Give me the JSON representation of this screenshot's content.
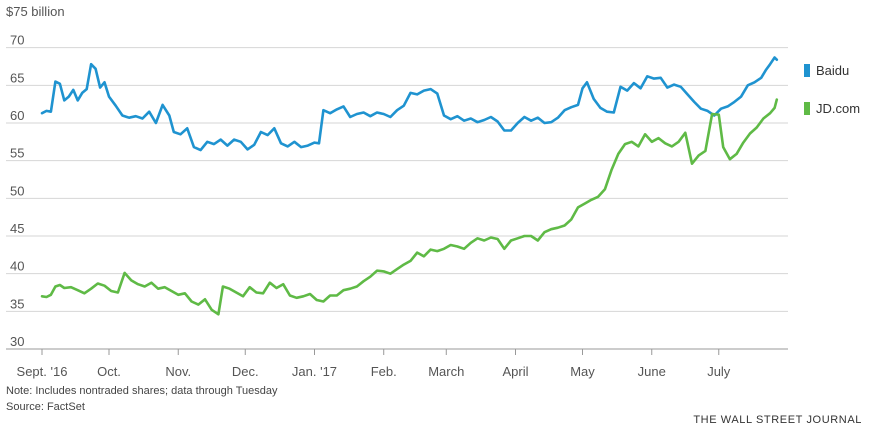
{
  "chart_data": {
    "type": "line",
    "title": "",
    "ylabel": "$75 billion",
    "xlabel": "",
    "ylim": [
      30,
      75
    ],
    "yticks": [
      30,
      35,
      40,
      45,
      50,
      55,
      60,
      65,
      70
    ],
    "grid": true,
    "legend_position": "right",
    "x_labels": [
      {
        "label": "Sept. '16",
        "date": "2016-09-01"
      },
      {
        "label": "Oct.",
        "date": "2016-10-01"
      },
      {
        "label": "Nov.",
        "date": "2016-11-01"
      },
      {
        "label": "Dec.",
        "date": "2016-12-01"
      },
      {
        "label": "Jan. '17",
        "date": "2017-01-01"
      },
      {
        "label": "Feb.",
        "date": "2017-02-01"
      },
      {
        "label": "March",
        "date": "2017-03-01"
      },
      {
        "label": "April",
        "date": "2017-04-01"
      },
      {
        "label": "May",
        "date": "2017-05-01"
      },
      {
        "label": "June",
        "date": "2017-06-01"
      },
      {
        "label": "July",
        "date": "2017-07-01"
      }
    ],
    "series": [
      {
        "name": "Baidu",
        "color": "#1f93d0",
        "points": [
          [
            "2016-09-01",
            61.3
          ],
          [
            "2016-09-03",
            61.6
          ],
          [
            "2016-09-05",
            61.5
          ],
          [
            "2016-09-07",
            65.5
          ],
          [
            "2016-09-09",
            65.2
          ],
          [
            "2016-09-11",
            63.0
          ],
          [
            "2016-09-13",
            63.5
          ],
          [
            "2016-09-15",
            64.4
          ],
          [
            "2016-09-17",
            63.0
          ],
          [
            "2016-09-19",
            64.0
          ],
          [
            "2016-09-21",
            64.5
          ],
          [
            "2016-09-23",
            67.8
          ],
          [
            "2016-09-25",
            67.2
          ],
          [
            "2016-09-27",
            64.7
          ],
          [
            "2016-09-29",
            65.4
          ],
          [
            "2016-10-01",
            63.5
          ],
          [
            "2016-10-04",
            62.3
          ],
          [
            "2016-10-07",
            61.0
          ],
          [
            "2016-10-10",
            60.7
          ],
          [
            "2016-10-13",
            60.9
          ],
          [
            "2016-10-16",
            60.6
          ],
          [
            "2016-10-19",
            61.5
          ],
          [
            "2016-10-22",
            60.0
          ],
          [
            "2016-10-25",
            62.4
          ],
          [
            "2016-10-28",
            61.0
          ],
          [
            "2016-10-30",
            58.8
          ],
          [
            "2016-11-02",
            58.5
          ],
          [
            "2016-11-05",
            59.3
          ],
          [
            "2016-11-08",
            56.8
          ],
          [
            "2016-11-11",
            56.4
          ],
          [
            "2016-11-14",
            57.5
          ],
          [
            "2016-11-17",
            57.2
          ],
          [
            "2016-11-20",
            57.8
          ],
          [
            "2016-11-23",
            57.0
          ],
          [
            "2016-11-26",
            57.8
          ],
          [
            "2016-11-29",
            57.5
          ],
          [
            "2016-12-02",
            56.5
          ],
          [
            "2016-12-05",
            57.1
          ],
          [
            "2016-12-08",
            58.8
          ],
          [
            "2016-12-11",
            58.4
          ],
          [
            "2016-12-14",
            59.3
          ],
          [
            "2016-12-17",
            57.3
          ],
          [
            "2016-12-20",
            56.9
          ],
          [
            "2016-12-23",
            57.5
          ],
          [
            "2016-12-26",
            56.8
          ],
          [
            "2016-12-29",
            57.0
          ],
          [
            "2017-01-01",
            57.4
          ],
          [
            "2017-01-03",
            57.3
          ],
          [
            "2017-01-05",
            61.7
          ],
          [
            "2017-01-08",
            61.3
          ],
          [
            "2017-01-11",
            61.8
          ],
          [
            "2017-01-14",
            62.2
          ],
          [
            "2017-01-17",
            60.8
          ],
          [
            "2017-01-20",
            61.2
          ],
          [
            "2017-01-23",
            61.4
          ],
          [
            "2017-01-26",
            60.9
          ],
          [
            "2017-01-29",
            61.4
          ],
          [
            "2017-02-01",
            61.2
          ],
          [
            "2017-02-04",
            60.8
          ],
          [
            "2017-02-07",
            61.7
          ],
          [
            "2017-02-10",
            62.3
          ],
          [
            "2017-02-13",
            64.0
          ],
          [
            "2017-02-16",
            63.8
          ],
          [
            "2017-02-19",
            64.3
          ],
          [
            "2017-02-22",
            64.5
          ],
          [
            "2017-02-25",
            63.9
          ],
          [
            "2017-02-28",
            61.0
          ],
          [
            "2017-03-03",
            60.5
          ],
          [
            "2017-03-06",
            60.9
          ],
          [
            "2017-03-09",
            60.3
          ],
          [
            "2017-03-12",
            60.6
          ],
          [
            "2017-03-15",
            60.1
          ],
          [
            "2017-03-18",
            60.4
          ],
          [
            "2017-03-21",
            60.8
          ],
          [
            "2017-03-24",
            60.2
          ],
          [
            "2017-03-27",
            59.0
          ],
          [
            "2017-03-30",
            59.0
          ],
          [
            "2017-04-02",
            60.0
          ],
          [
            "2017-04-05",
            60.8
          ],
          [
            "2017-04-08",
            60.3
          ],
          [
            "2017-04-11",
            60.7
          ],
          [
            "2017-04-14",
            60.0
          ],
          [
            "2017-04-17",
            60.1
          ],
          [
            "2017-04-20",
            60.7
          ],
          [
            "2017-04-23",
            61.7
          ],
          [
            "2017-04-26",
            62.1
          ],
          [
            "2017-04-29",
            62.4
          ],
          [
            "2017-05-01",
            64.6
          ],
          [
            "2017-05-03",
            65.4
          ],
          [
            "2017-05-06",
            63.2
          ],
          [
            "2017-05-09",
            62.0
          ],
          [
            "2017-05-12",
            61.5
          ],
          [
            "2017-05-15",
            61.4
          ],
          [
            "2017-05-18",
            64.8
          ],
          [
            "2017-05-21",
            64.3
          ],
          [
            "2017-05-24",
            65.3
          ],
          [
            "2017-05-27",
            64.6
          ],
          [
            "2017-05-30",
            66.2
          ],
          [
            "2017-06-02",
            65.9
          ],
          [
            "2017-06-05",
            66.0
          ],
          [
            "2017-06-08",
            64.7
          ],
          [
            "2017-06-11",
            65.1
          ],
          [
            "2017-06-14",
            64.8
          ],
          [
            "2017-06-17",
            63.8
          ],
          [
            "2017-06-20",
            62.8
          ],
          [
            "2017-06-23",
            61.9
          ],
          [
            "2017-06-26",
            61.6
          ],
          [
            "2017-06-29",
            61.0
          ],
          [
            "2017-07-02",
            61.9
          ],
          [
            "2017-07-05",
            62.2
          ],
          [
            "2017-07-08",
            62.8
          ],
          [
            "2017-07-11",
            63.5
          ],
          [
            "2017-07-14",
            65.0
          ],
          [
            "2017-07-17",
            65.4
          ],
          [
            "2017-07-20",
            66.0
          ],
          [
            "2017-07-22",
            67.0
          ],
          [
            "2017-07-24",
            67.8
          ],
          [
            "2017-07-26",
            68.7
          ],
          [
            "2017-07-27",
            68.4
          ]
        ]
      },
      {
        "name": "JD.com",
        "color": "#5fba46",
        "points": [
          [
            "2016-09-01",
            37.0
          ],
          [
            "2016-09-03",
            36.9
          ],
          [
            "2016-09-05",
            37.2
          ],
          [
            "2016-09-07",
            38.3
          ],
          [
            "2016-09-09",
            38.5
          ],
          [
            "2016-09-11",
            38.1
          ],
          [
            "2016-09-14",
            38.2
          ],
          [
            "2016-09-17",
            37.8
          ],
          [
            "2016-09-20",
            37.4
          ],
          [
            "2016-09-23",
            38.0
          ],
          [
            "2016-09-26",
            38.7
          ],
          [
            "2016-09-29",
            38.4
          ],
          [
            "2016-10-02",
            37.7
          ],
          [
            "2016-10-05",
            37.5
          ],
          [
            "2016-10-08",
            40.1
          ],
          [
            "2016-10-11",
            39.1
          ],
          [
            "2016-10-14",
            38.6
          ],
          [
            "2016-10-17",
            38.3
          ],
          [
            "2016-10-20",
            38.8
          ],
          [
            "2016-10-23",
            38.0
          ],
          [
            "2016-10-26",
            38.2
          ],
          [
            "2016-10-29",
            37.7
          ],
          [
            "2016-11-01",
            37.2
          ],
          [
            "2016-11-04",
            37.4
          ],
          [
            "2016-11-07",
            36.3
          ],
          [
            "2016-11-10",
            35.9
          ],
          [
            "2016-11-13",
            36.6
          ],
          [
            "2016-11-16",
            35.2
          ],
          [
            "2016-11-19",
            34.6
          ],
          [
            "2016-11-21",
            38.3
          ],
          [
            "2016-11-24",
            38.0
          ],
          [
            "2016-11-27",
            37.5
          ],
          [
            "2016-11-30",
            37.0
          ],
          [
            "2016-12-03",
            38.2
          ],
          [
            "2016-12-06",
            37.5
          ],
          [
            "2016-12-09",
            37.4
          ],
          [
            "2016-12-12",
            38.8
          ],
          [
            "2016-12-15",
            38.1
          ],
          [
            "2016-12-18",
            38.6
          ],
          [
            "2016-12-21",
            37.1
          ],
          [
            "2016-12-24",
            36.8
          ],
          [
            "2016-12-27",
            37.0
          ],
          [
            "2016-12-30",
            37.3
          ],
          [
            "2017-01-02",
            36.5
          ],
          [
            "2017-01-05",
            36.3
          ],
          [
            "2017-01-08",
            37.1
          ],
          [
            "2017-01-11",
            37.1
          ],
          [
            "2017-01-14",
            37.8
          ],
          [
            "2017-01-17",
            38.0
          ],
          [
            "2017-01-20",
            38.3
          ],
          [
            "2017-01-23",
            39.0
          ],
          [
            "2017-01-26",
            39.6
          ],
          [
            "2017-01-29",
            40.4
          ],
          [
            "2017-02-01",
            40.3
          ],
          [
            "2017-02-04",
            40.0
          ],
          [
            "2017-02-07",
            40.6
          ],
          [
            "2017-02-10",
            41.2
          ],
          [
            "2017-02-13",
            41.7
          ],
          [
            "2017-02-16",
            42.8
          ],
          [
            "2017-02-19",
            42.3
          ],
          [
            "2017-02-22",
            43.2
          ],
          [
            "2017-02-25",
            43.0
          ],
          [
            "2017-02-28",
            43.3
          ],
          [
            "2017-03-03",
            43.8
          ],
          [
            "2017-03-06",
            43.6
          ],
          [
            "2017-03-09",
            43.3
          ],
          [
            "2017-03-12",
            44.1
          ],
          [
            "2017-03-15",
            44.7
          ],
          [
            "2017-03-18",
            44.4
          ],
          [
            "2017-03-21",
            44.8
          ],
          [
            "2017-03-24",
            44.6
          ],
          [
            "2017-03-27",
            43.3
          ],
          [
            "2017-03-30",
            44.4
          ],
          [
            "2017-04-02",
            44.7
          ],
          [
            "2017-04-05",
            45.0
          ],
          [
            "2017-04-08",
            45.0
          ],
          [
            "2017-04-11",
            44.4
          ],
          [
            "2017-04-14",
            45.5
          ],
          [
            "2017-04-17",
            45.9
          ],
          [
            "2017-04-20",
            46.1
          ],
          [
            "2017-04-23",
            46.4
          ],
          [
            "2017-04-26",
            47.2
          ],
          [
            "2017-04-29",
            48.8
          ],
          [
            "2017-05-02",
            49.3
          ],
          [
            "2017-05-05",
            49.8
          ],
          [
            "2017-05-08",
            50.2
          ],
          [
            "2017-05-11",
            51.2
          ],
          [
            "2017-05-14",
            53.8
          ],
          [
            "2017-05-17",
            55.9
          ],
          [
            "2017-05-20",
            57.2
          ],
          [
            "2017-05-23",
            57.5
          ],
          [
            "2017-05-26",
            56.9
          ],
          [
            "2017-05-29",
            58.5
          ],
          [
            "2017-06-01",
            57.5
          ],
          [
            "2017-06-04",
            58.0
          ],
          [
            "2017-06-07",
            57.3
          ],
          [
            "2017-06-10",
            56.9
          ],
          [
            "2017-06-13",
            57.5
          ],
          [
            "2017-06-16",
            58.7
          ],
          [
            "2017-06-19",
            54.6
          ],
          [
            "2017-06-22",
            55.7
          ],
          [
            "2017-06-25",
            56.3
          ],
          [
            "2017-06-28",
            61.2
          ],
          [
            "2017-07-01",
            61.1
          ],
          [
            "2017-07-03",
            56.8
          ],
          [
            "2017-07-06",
            55.2
          ],
          [
            "2017-07-09",
            55.9
          ],
          [
            "2017-07-12",
            57.4
          ],
          [
            "2017-07-15",
            58.6
          ],
          [
            "2017-07-18",
            59.4
          ],
          [
            "2017-07-21",
            60.6
          ],
          [
            "2017-07-24",
            61.3
          ],
          [
            "2017-07-26",
            62.0
          ],
          [
            "2017-07-27",
            63.1
          ]
        ]
      }
    ],
    "note": "Note: Includes nontraded shares; data through Tuesday",
    "source": "Source: FactSet",
    "brand": "THE WALL STREET JOURNAL"
  }
}
